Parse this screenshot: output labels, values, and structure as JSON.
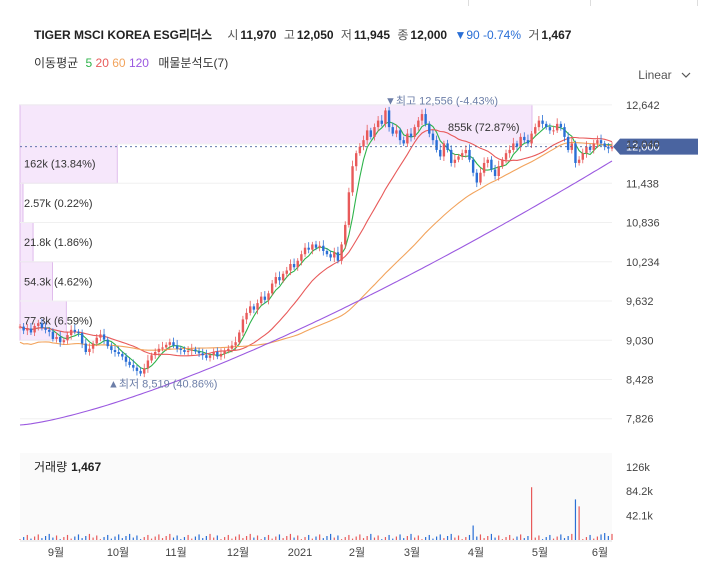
{
  "header": {
    "name": "TIGER MSCI KOREA ESG리더스",
    "open_label": "시",
    "open": "11,970",
    "high_label": "고",
    "high": "12,050",
    "low_label": "저",
    "low": "11,945",
    "close_label": "종",
    "close": "12,000",
    "change": "▼90 -0.74%",
    "volume_label": "거",
    "volume": "1,467"
  },
  "ma_legend": {
    "title": "이동평균",
    "p5": "5",
    "p20": "20",
    "p60": "60",
    "p120": "120",
    "profile": "매물분석도(7)"
  },
  "scale_toggle": "Linear",
  "colors": {
    "ma5": "#2db34a",
    "ma20": "#e85a5a",
    "ma60": "#f2a35c",
    "ma120": "#9b59e0",
    "up": "#e85a5a",
    "down": "#2a6fd6",
    "profile": "#f6e7fb",
    "current": "#4a64a0"
  },
  "annotations": {
    "high": "▼최고 12,556 (-4.43%)",
    "low": "▲최저 8,519 (40.86%)",
    "current_price": "12,000"
  },
  "volume_panel": {
    "title": "거래량",
    "value": "1,467"
  },
  "chart_data": {
    "type": "candlestick",
    "x_ticks": [
      "9월",
      "10월",
      "11월",
      "12월",
      "2021",
      "2월",
      "3월",
      "4월",
      "5월",
      "6월"
    ],
    "y_ticks": [
      "12,642",
      "12,040",
      "11,438",
      "10,836",
      "10,234",
      "9,632",
      "9,030",
      "8,428",
      "7,826"
    ],
    "ylim": [
      7500,
      12900
    ],
    "volume_ticks": [
      "126k",
      "84.2k",
      "42.1k"
    ],
    "volume_ylim": [
      0,
      150000
    ],
    "volume_profile": [
      {
        "low": 12040,
        "high": 12642,
        "label": "855k (72.87%)",
        "share": 0.7287
      },
      {
        "low": 11438,
        "high": 12040,
        "label": "162k (13.84%)",
        "share": 0.1384
      },
      {
        "low": 10836,
        "high": 11438,
        "label": "2.57k (0.22%)",
        "share": 0.0022
      },
      {
        "low": 10234,
        "high": 10836,
        "label": "21.8k (1.86%)",
        "share": 0.0186
      },
      {
        "low": 9632,
        "high": 10234,
        "label": "54.3k (4.62%)",
        "share": 0.0462
      },
      {
        "low": 9030,
        "high": 9632,
        "label": "77.3k (6.59%)",
        "share": 0.0659
      }
    ],
    "close": [
      9240,
      9180,
      9210,
      9150,
      9250,
      9290,
      9220,
      9190,
      9160,
      9050,
      9080,
      9000,
      9030,
      9110,
      9190,
      9160,
      9140,
      8980,
      8850,
      8900,
      8980,
      9070,
      9120,
      9040,
      8940,
      8880,
      8850,
      8820,
      8780,
      8700,
      8650,
      8610,
      8560,
      8519,
      8600,
      8720,
      8800,
      8850,
      8900,
      8920,
      8960,
      9000,
      8950,
      8900,
      8880,
      8850,
      8870,
      8890,
      8860,
      8830,
      8800,
      8760,
      8800,
      8850,
      8780,
      8820,
      8870,
      8900,
      8950,
      9000,
      9150,
      9350,
      9450,
      9550,
      9500,
      9600,
      9700,
      9650,
      9750,
      9900,
      10000,
      9950,
      10050,
      10100,
      10200,
      10150,
      10250,
      10350,
      10450,
      10420,
      10500,
      10450,
      10480,
      10400,
      10350,
      10300,
      10380,
      10250,
      10500,
      10800,
      11300,
      11700,
      11900,
      12000,
      12100,
      12250,
      12150,
      12300,
      12400,
      12350,
      12556,
      12300,
      12200,
      12250,
      12100,
      12050,
      12200,
      12150,
      12300,
      12400,
      12500,
      12350,
      12200,
      12100,
      11950,
      11850,
      12050,
      11950,
      11750,
      11800,
      11850,
      11900,
      11950,
      11800,
      11600,
      11450,
      11600,
      11750,
      11800,
      11650,
      11550,
      11700,
      11800,
      11900,
      11950,
      12050,
      12000,
      12150,
      12100,
      12050,
      12200,
      12300,
      12400,
      12350,
      12300,
      12250,
      12250,
      12350,
      12300,
      12150,
      11950,
      12050,
      11750,
      11800,
      11900,
      12000,
      11950,
      12050,
      12100,
      12050,
      12000,
      11970,
      12000
    ],
    "series": [
      {
        "name": "5"
      },
      {
        "name": "20"
      },
      {
        "name": "60"
      },
      {
        "name": "120"
      }
    ]
  }
}
